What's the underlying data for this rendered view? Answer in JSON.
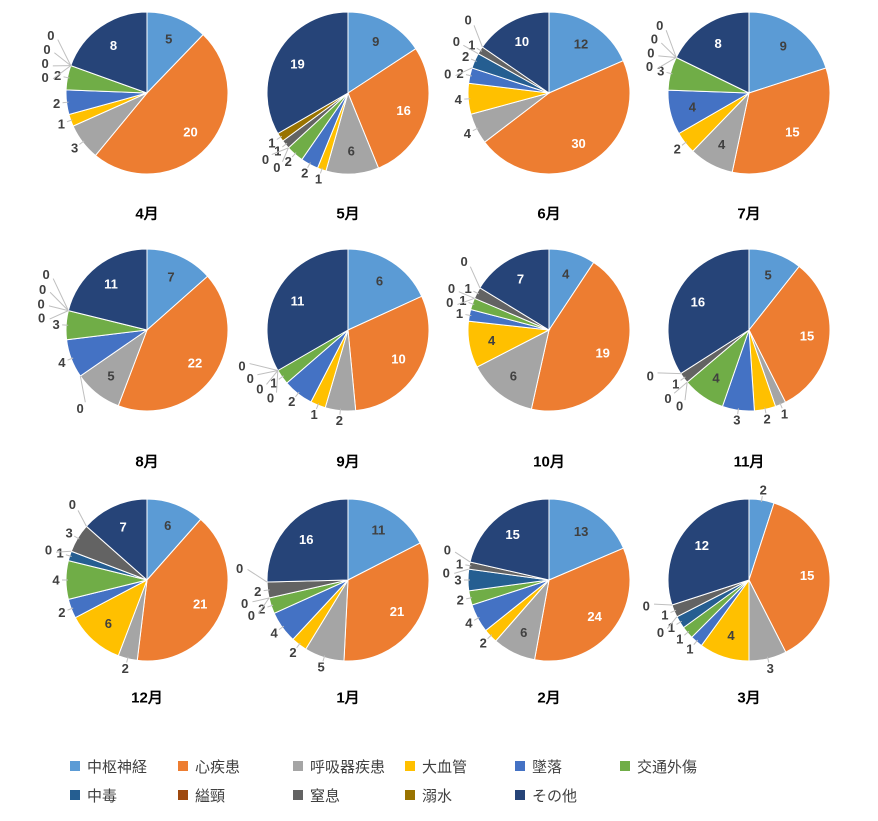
{
  "chart_data": {
    "type": "pie",
    "title": "",
    "categories": [
      "中枢神経",
      "心疾患",
      "呼吸器疾患",
      "大血管",
      "墜落",
      "交通外傷",
      "中毒",
      "縊頸",
      "窒息",
      "溺水",
      "その他"
    ],
    "colors": [
      "#5B9BD5",
      "#ED7D31",
      "#A5A5A5",
      "#FFC000",
      "#4472C4",
      "#70AD47",
      "#255E91",
      "#9E480E",
      "#636363",
      "#997300",
      "#264478"
    ],
    "legend_position": "bottom",
    "charts": [
      {
        "label": "4月",
        "values": [
          5,
          20,
          3,
          1,
          2,
          2,
          0,
          0,
          0,
          0,
          8
        ]
      },
      {
        "label": "5月",
        "values": [
          9,
          16,
          6,
          1,
          2,
          2,
          0,
          0,
          1,
          1,
          19
        ]
      },
      {
        "label": "6月",
        "values": [
          12,
          30,
          4,
          4,
          2,
          0,
          2,
          0,
          1,
          0,
          10
        ]
      },
      {
        "label": "7月",
        "values": [
          9,
          15,
          4,
          2,
          4,
          3,
          0,
          0,
          0,
          0,
          8
        ]
      },
      {
        "label": "8月",
        "values": [
          7,
          22,
          5,
          0,
          4,
          3,
          0,
          0,
          0,
          0,
          11
        ]
      },
      {
        "label": "9月",
        "values": [
          6,
          10,
          2,
          1,
          2,
          1,
          0,
          0,
          0,
          0,
          11
        ]
      },
      {
        "label": "10月",
        "values": [
          4,
          19,
          6,
          4,
          1,
          1,
          0,
          0,
          1,
          0,
          7
        ]
      },
      {
        "label": "11月",
        "values": [
          5,
          15,
          1,
          2,
          3,
          4,
          0,
          0,
          1,
          0,
          16
        ]
      },
      {
        "label": "12月",
        "values": [
          6,
          21,
          2,
          6,
          2,
          4,
          1,
          0,
          3,
          0,
          7
        ]
      },
      {
        "label": "1月",
        "values": [
          11,
          21,
          5,
          2,
          4,
          2,
          0,
          0,
          2,
          0,
          16
        ]
      },
      {
        "label": "2月",
        "values": [
          13,
          24,
          6,
          2,
          4,
          2,
          3,
          0,
          1,
          0,
          15
        ]
      },
      {
        "label": "3月",
        "values": [
          2,
          15,
          3,
          4,
          1,
          1,
          1,
          0,
          1,
          0,
          12
        ]
      }
    ]
  }
}
